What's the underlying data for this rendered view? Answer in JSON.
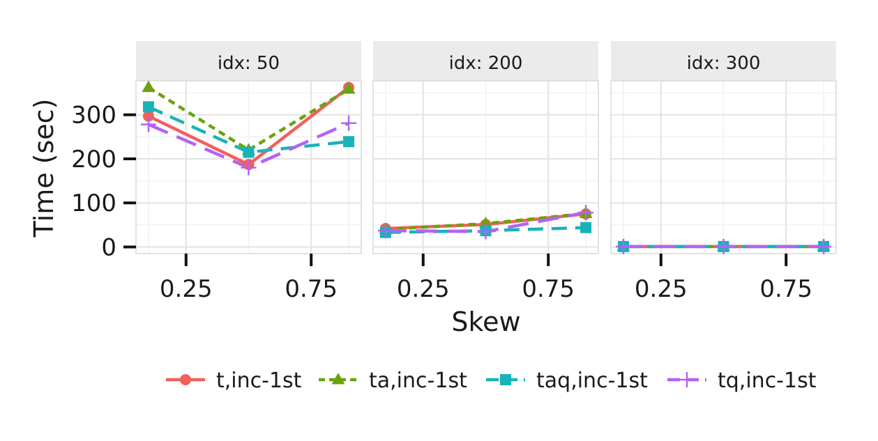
{
  "chart_data": {
    "type": "line",
    "xlabel": "Skew",
    "ylabel": "Time (sec)",
    "xlim": [
      0.05,
      0.95
    ],
    "ylim": [
      -15,
      377
    ],
    "x_ticks": [
      0.25,
      0.75
    ],
    "x_tick_labels": [
      "0.25",
      "0.75"
    ],
    "y_ticks": [
      0,
      100,
      200,
      300
    ],
    "y_tick_labels": [
      "0",
      "100",
      "200",
      "300"
    ],
    "grid": true,
    "legend_position": "bottom",
    "panels": [
      {
        "label": "idx: 50",
        "x": [
          0.1,
          0.5,
          0.9
        ],
        "series": [
          {
            "name": "t,inc-1st",
            "values": [
              297,
              187,
              362
            ]
          },
          {
            "name": "ta,inc-1st",
            "values": [
              362,
              220,
              358
            ]
          },
          {
            "name": "taq,inc-1st",
            "values": [
              318,
              215,
              239
            ]
          },
          {
            "name": "tq,inc-1st",
            "values": [
              278,
              180,
              281
            ]
          }
        ]
      },
      {
        "label": "idx: 200",
        "x": [
          0.1,
          0.5,
          0.9
        ],
        "series": [
          {
            "name": "t,inc-1st",
            "values": [
              42,
              51,
              75
            ]
          },
          {
            "name": "ta,inc-1st",
            "values": [
              40,
              53,
              76
            ]
          },
          {
            "name": "taq,inc-1st",
            "values": [
              33,
              37,
              44
            ]
          },
          {
            "name": "tq,inc-1st",
            "values": [
              37,
              35,
              78
            ]
          }
        ]
      },
      {
        "label": "idx: 300",
        "x": [
          0.1,
          0.5,
          0.9
        ],
        "series": [
          {
            "name": "t,inc-1st",
            "values": [
              1,
              1,
              1
            ]
          },
          {
            "name": "ta,inc-1st",
            "values": [
              1,
              1,
              1
            ]
          },
          {
            "name": "taq,inc-1st",
            "values": [
              1,
              1,
              1
            ]
          },
          {
            "name": "tq,inc-1st",
            "values": [
              1,
              1,
              1
            ]
          }
        ]
      }
    ],
    "series_styles": [
      {
        "name": "t,inc-1st",
        "color": "#F0605D",
        "dash": "solid",
        "marker": "circle"
      },
      {
        "name": "ta,inc-1st",
        "color": "#6BA30B",
        "dash": "dotted",
        "marker": "triangle"
      },
      {
        "name": "taq,inc-1st",
        "color": "#17B3B8",
        "dash": "dashed",
        "marker": "square"
      },
      {
        "name": "tq,inc-1st",
        "color": "#B462F4",
        "dash": "longdash",
        "marker": "plus"
      }
    ]
  }
}
